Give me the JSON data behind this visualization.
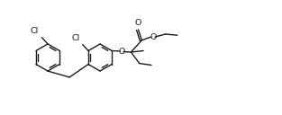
{
  "bg_color": "#ffffff",
  "line_color": "#1c1c1c",
  "lw": 1.0,
  "fs": 6.8,
  "xlim": [
    0,
    9.5
  ],
  "ylim": [
    0.5,
    4.5
  ],
  "figsize": [
    3.13,
    1.28
  ],
  "dpi": 100
}
